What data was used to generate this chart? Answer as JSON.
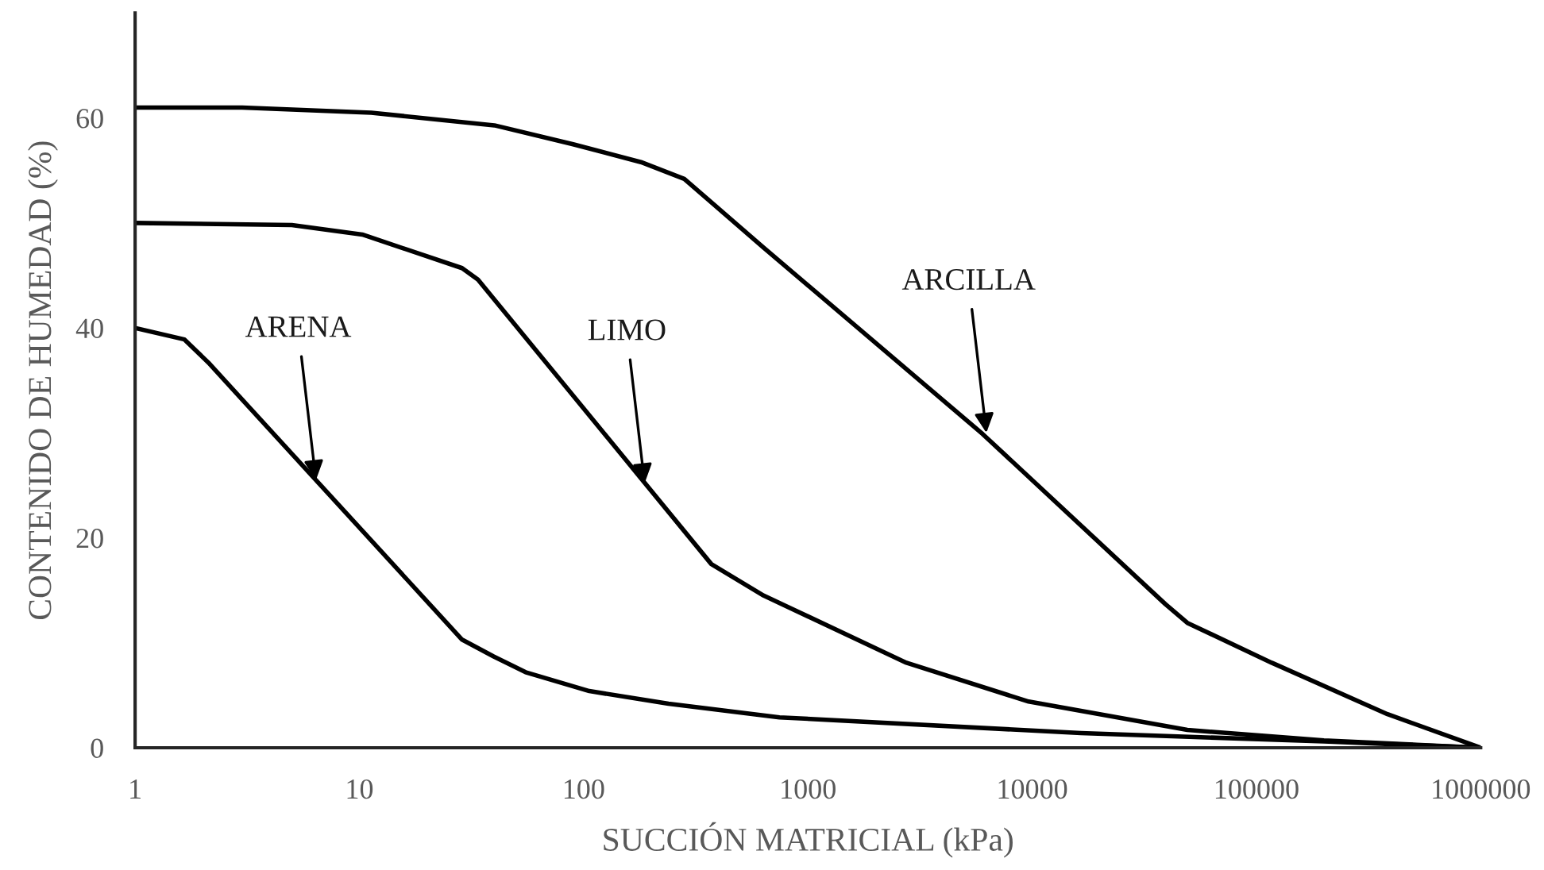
{
  "chart_data": {
    "type": "line",
    "xlabel": "SUCCIÓN MATRICIAL (kPa)",
    "ylabel": "CONTENIDO DE HUMEDAD (%)",
    "log": "x",
    "xlim": [
      1,
      1000000
    ],
    "xticks": [
      1,
      10,
      100,
      1000,
      10000,
      100000,
      1000000
    ],
    "ylim": [
      0,
      70
    ],
    "yticks": [
      0,
      20,
      40,
      60
    ],
    "grid": false,
    "marker": "none",
    "line_style": "solid",
    "series": [
      {
        "color": "#000000",
        "x": [
          1,
          3,
          11.3,
          40,
          89.8,
          180,
          281,
          631,
          6010,
          39200,
          49200,
          117000,
          384000,
          1000000
        ],
        "values": [
          61,
          61,
          60.5,
          59.3,
          57.5,
          55.8,
          54.2,
          47.7,
          29.9,
          13.7,
          11.9,
          8.1,
          3.2,
          0
        ]
      },
      {
        "color": "#000000",
        "x": [
          1,
          5,
          10.3,
          28.7,
          33.8,
          371,
          635,
          2750,
          9650,
          49200,
          200000,
          1000000
        ],
        "values": [
          50,
          49.8,
          48.9,
          45.7,
          44.6,
          17.5,
          14.5,
          8.1,
          4.4,
          1.7,
          0.7,
          0
        ]
      },
      {
        "color": "#000000",
        "x": [
          1,
          1.66,
          2.12,
          28.7,
          39.7,
          55.1,
          106,
          239,
          747,
          16500,
          200000,
          1000000
        ],
        "values": [
          40,
          38.9,
          36.7,
          10.3,
          8.7,
          7.2,
          5.4,
          4.2,
          2.9,
          1.4,
          0.6,
          0
        ]
      }
    ],
    "annotations": [
      {
        "text": "ARENA",
        "x": 6.4,
        "y": 25.5
      },
      {
        "text": "LIMO",
        "x": 187,
        "y": 25.2
      },
      {
        "text": "ARCILLA",
        "x": 6250,
        "y": 30
      }
    ]
  }
}
